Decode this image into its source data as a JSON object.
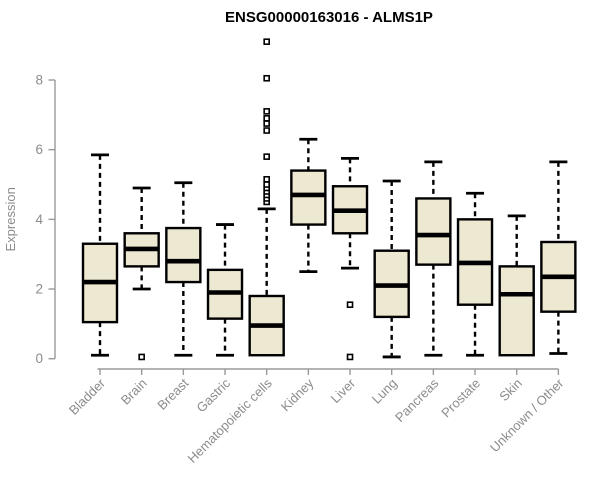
{
  "chart_data": {
    "type": "box",
    "title": "ENSG00000163016 - ALMS1P",
    "xlabel": "",
    "ylabel": "Expression",
    "ylim": [
      0,
      9.3
    ],
    "yticks": [
      0,
      2,
      4,
      6,
      8
    ],
    "grid": false,
    "legend": "none",
    "categories": [
      "Bladder",
      "Brain",
      "Breast",
      "Gastric",
      "Hematopoietic cells",
      "Kidney",
      "Liver",
      "Lung",
      "Pancreas",
      "Prostate",
      "Skin",
      "Unknown / Other"
    ],
    "series": [
      {
        "name": "Bladder",
        "whisker_low": 0.1,
        "q1": 1.05,
        "median": 2.2,
        "q3": 3.3,
        "whisker_high": 5.85,
        "outliers": []
      },
      {
        "name": "Brain",
        "whisker_low": 2.0,
        "q1": 2.65,
        "median": 3.15,
        "q3": 3.6,
        "whisker_high": 4.9,
        "outliers": [
          0.05
        ]
      },
      {
        "name": "Breast",
        "whisker_low": 0.1,
        "q1": 2.2,
        "median": 2.8,
        "q3": 3.75,
        "whisker_high": 5.05,
        "outliers": []
      },
      {
        "name": "Gastric",
        "whisker_low": 0.1,
        "q1": 1.15,
        "median": 1.9,
        "q3": 2.55,
        "whisker_high": 3.85,
        "outliers": []
      },
      {
        "name": "Hematopoietic cells",
        "whisker_low": 0.1,
        "q1": 0.1,
        "median": 0.95,
        "q3": 1.8,
        "whisker_high": 4.3,
        "outliers": [
          4.5,
          4.6,
          4.7,
          4.8,
          4.9,
          5.0,
          5.15,
          5.8,
          6.55,
          6.75,
          6.9,
          7.1,
          8.05,
          9.1
        ]
      },
      {
        "name": "Kidney",
        "whisker_low": 2.5,
        "q1": 3.85,
        "median": 4.7,
        "q3": 5.4,
        "whisker_high": 6.3,
        "outliers": []
      },
      {
        "name": "Liver",
        "whisker_low": 2.6,
        "q1": 3.6,
        "median": 4.25,
        "q3": 4.95,
        "whisker_high": 5.75,
        "outliers": [
          1.55,
          0.05
        ]
      },
      {
        "name": "Lung",
        "whisker_low": 0.05,
        "q1": 1.2,
        "median": 2.1,
        "q3": 3.1,
        "whisker_high": 5.1,
        "outliers": []
      },
      {
        "name": "Pancreas",
        "whisker_low": 0.1,
        "q1": 2.7,
        "median": 3.55,
        "q3": 4.6,
        "whisker_high": 5.65,
        "outliers": []
      },
      {
        "name": "Prostate",
        "whisker_low": 0.1,
        "q1": 1.55,
        "median": 2.75,
        "q3": 4.0,
        "whisker_high": 4.75,
        "outliers": []
      },
      {
        "name": "Skin",
        "whisker_low": 0.1,
        "q1": 0.1,
        "median": 1.85,
        "q3": 2.65,
        "whisker_high": 4.1,
        "outliers": []
      },
      {
        "name": "Unknown / Other",
        "whisker_low": 0.15,
        "q1": 1.35,
        "median": 2.35,
        "q3": 3.35,
        "whisker_high": 5.65,
        "outliers": []
      }
    ],
    "colors": {
      "box_fill": "#EDE8D1",
      "box_border": "#000000",
      "median": "#000000",
      "whisker": "#000000",
      "outlier_fill": "#ffffff",
      "outlier_border": "#000000",
      "axis": "#9a9a9a",
      "tick_text": "#8c8c8c",
      "title_text": "#000000"
    }
  }
}
